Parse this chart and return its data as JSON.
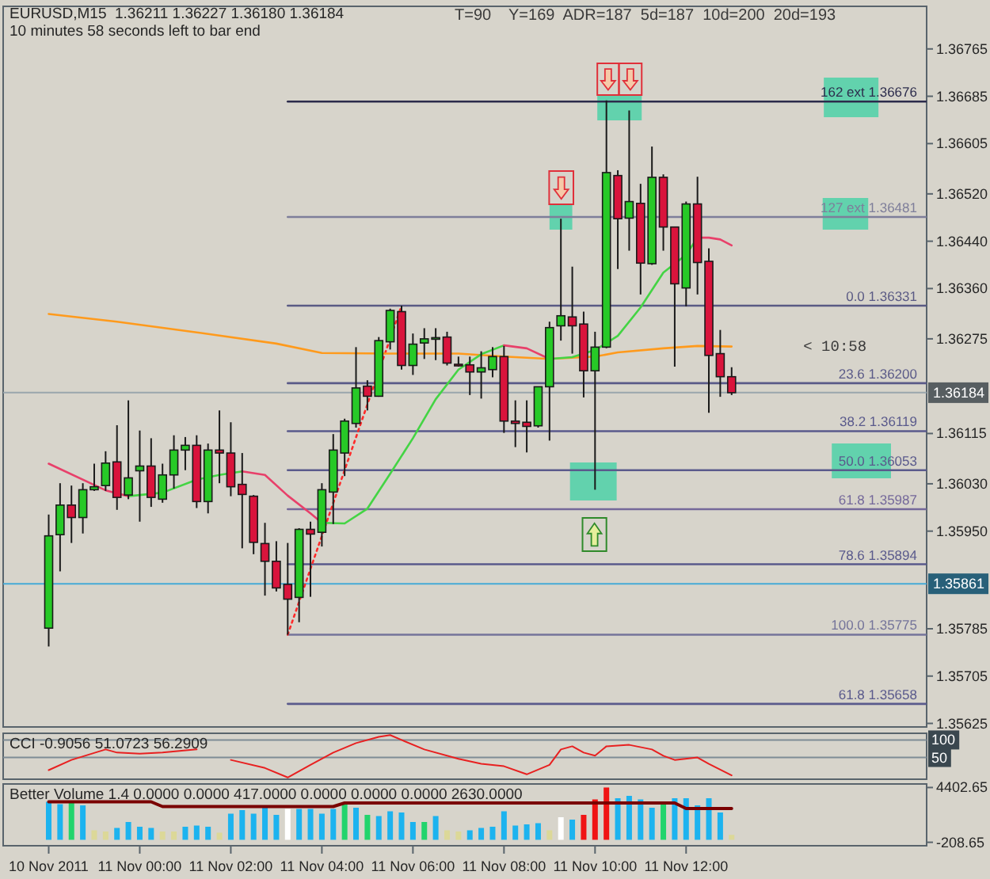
{
  "chart_data": [
    {
      "type": "candlestick",
      "title": "EURUSD,M15  1.36211 1.36227 1.36180 1.36184",
      "subtitle": "10 minutes 58 seconds left to bar end",
      "annotations": [
        "T=90    Y=169  ADR=187  5d=187  10d=200  20d=193",
        "< 10:58"
      ],
      "x": [
        "2011-11-10T22:00",
        "2011-11-10T22:15",
        "2011-11-10T22:30",
        "2011-11-10T22:45",
        "2011-11-10T23:00",
        "2011-11-10T23:15",
        "2011-11-10T23:30",
        "2011-11-10T23:45",
        "2011-11-11T00:00",
        "2011-11-11T00:15",
        "2011-11-11T00:30",
        "2011-11-11T00:45",
        "2011-11-11T01:00",
        "2011-11-11T01:15",
        "2011-11-11T01:30",
        "2011-11-11T01:45",
        "2011-11-11T02:00",
        "2011-11-11T02:15",
        "2011-11-11T02:30",
        "2011-11-11T02:45",
        "2011-11-11T03:00",
        "2011-11-11T03:15",
        "2011-11-11T03:30",
        "2011-11-11T03:45",
        "2011-11-11T04:00",
        "2011-11-11T04:15",
        "2011-11-11T04:30",
        "2011-11-11T04:45",
        "2011-11-11T05:00",
        "2011-11-11T05:15",
        "2011-11-11T05:30",
        "2011-11-11T05:45",
        "2011-11-11T06:00",
        "2011-11-11T06:15",
        "2011-11-11T06:30",
        "2011-11-11T06:45",
        "2011-11-11T07:00",
        "2011-11-11T07:15",
        "2011-11-11T07:30",
        "2011-11-11T07:45",
        "2011-11-11T08:00",
        "2011-11-11T08:15",
        "2011-11-11T08:30",
        "2011-11-11T08:45",
        "2011-11-11T09:00",
        "2011-11-11T09:15",
        "2011-11-11T09:30",
        "2011-11-11T09:45",
        "2011-11-11T10:00",
        "2011-11-11T10:15",
        "2011-11-11T10:30",
        "2011-11-11T10:45",
        "2011-11-11T11:00",
        "2011-11-11T11:15",
        "2011-11-11T11:30",
        "2011-11-11T11:45",
        "2011-11-11T12:00",
        "2011-11-11T12:15",
        "2011-11-11T12:30",
        "2011-11-11T12:45",
        "2011-11-11T13:00"
      ],
      "ohlc": [
        [
          1.35786,
          1.35978,
          1.35755,
          1.35942
        ],
        [
          1.35944,
          1.36031,
          1.35882,
          1.35994
        ],
        [
          1.35994,
          1.36027,
          1.3593,
          1.35973
        ],
        [
          1.35973,
          1.36031,
          1.35946,
          1.3602
        ],
        [
          1.3602,
          1.36064,
          1.36018,
          1.36025
        ],
        [
          1.36027,
          1.36085,
          1.36018,
          1.36065
        ],
        [
          1.36067,
          1.36129,
          1.35986,
          1.36007
        ],
        [
          1.36011,
          1.36171,
          1.36004,
          1.3604
        ],
        [
          1.36052,
          1.3612,
          1.35966,
          1.3606
        ],
        [
          1.3606,
          1.36107,
          1.35991,
          1.36007
        ],
        [
          1.36004,
          1.36064,
          1.35998,
          1.36045
        ],
        [
          1.36045,
          1.36112,
          1.36022,
          1.36087
        ],
        [
          1.36087,
          1.36109,
          1.36053,
          1.36095
        ],
        [
          1.36095,
          1.36112,
          1.35989,
          1.36
        ],
        [
          1.36,
          1.36098,
          1.3598,
          1.36087
        ],
        [
          1.36087,
          1.36154,
          1.36031,
          1.36082
        ],
        [
          1.36082,
          1.36134,
          1.36009,
          1.36025
        ],
        [
          1.36029,
          1.36082,
          1.35921,
          1.36012
        ],
        [
          1.36009,
          1.36011,
          1.35911,
          1.35931
        ],
        [
          1.35929,
          1.35964,
          1.35841,
          1.35899
        ],
        [
          1.35899,
          1.35933,
          1.35848,
          1.35854
        ],
        [
          1.3586,
          1.3593,
          1.35775,
          1.35835
        ],
        [
          1.35838,
          1.35955,
          1.35796,
          1.35953
        ],
        [
          1.35953,
          1.35966,
          1.35839,
          1.35945
        ],
        [
          1.35948,
          1.36031,
          1.35924,
          1.3602
        ],
        [
          1.36016,
          1.36114,
          1.35962,
          1.36087
        ],
        [
          1.36082,
          1.3614,
          1.36043,
          1.36136
        ],
        [
          1.36132,
          1.36261,
          1.36125,
          1.36192
        ],
        [
          1.36195,
          1.36205,
          1.36154,
          1.36178
        ],
        [
          1.36178,
          1.36278,
          1.36177,
          1.36272
        ],
        [
          1.3627,
          1.36326,
          1.36257,
          1.36323
        ],
        [
          1.36321,
          1.36331,
          1.36223,
          1.3623
        ],
        [
          1.3623,
          1.36284,
          1.36214,
          1.36266
        ],
        [
          1.36268,
          1.36293,
          1.36241,
          1.36275
        ],
        [
          1.36275,
          1.36293,
          1.36239,
          1.36277
        ],
        [
          1.36278,
          1.36287,
          1.3623,
          1.36234
        ],
        [
          1.36232,
          1.36245,
          1.36228,
          1.36231
        ],
        [
          1.36231,
          1.36245,
          1.3618,
          1.36219
        ],
        [
          1.36219,
          1.36254,
          1.36174,
          1.36226
        ],
        [
          1.36223,
          1.36261,
          1.3621,
          1.36245
        ],
        [
          1.36245,
          1.36263,
          1.36116,
          1.36136
        ],
        [
          1.36136,
          1.36171,
          1.36092,
          1.36132
        ],
        [
          1.36134,
          1.36171,
          1.36083,
          1.36127
        ],
        [
          1.36128,
          1.36194,
          1.36125,
          1.36194
        ],
        [
          1.36194,
          1.36304,
          1.36103,
          1.36294
        ],
        [
          1.36297,
          1.36478,
          1.36272,
          1.36314
        ],
        [
          1.36312,
          1.36397,
          1.3625,
          1.36297
        ],
        [
          1.363,
          1.36321,
          1.36176,
          1.36221
        ],
        [
          1.36221,
          1.36287,
          1.3602,
          1.36261
        ],
        [
          1.36261,
          1.36678,
          1.36259,
          1.36556
        ],
        [
          1.36551,
          1.3656,
          1.36393,
          1.36478
        ],
        [
          1.36479,
          1.36661,
          1.36424,
          1.36507
        ],
        [
          1.36504,
          1.36537,
          1.3635,
          1.36403
        ],
        [
          1.36402,
          1.366,
          1.364,
          1.36548
        ],
        [
          1.36548,
          1.36553,
          1.36424,
          1.36464
        ],
        [
          1.36464,
          1.36464,
          1.36228,
          1.36368
        ],
        [
          1.36361,
          1.36507,
          1.3633,
          1.36503
        ],
        [
          1.36503,
          1.36549,
          1.3635,
          1.36404
        ],
        [
          1.36406,
          1.36428,
          1.3615,
          1.36247
        ],
        [
          1.3625,
          1.3629,
          1.36177,
          1.36211
        ],
        [
          1.36211,
          1.36227,
          1.3618,
          1.36184
        ]
      ],
      "colors": [
        "#27c927",
        "#27c927",
        "#d9143c",
        "#27c927",
        "#27c927",
        "#27c927",
        "#d9143c",
        "#27c927",
        "#27c927",
        "#d9143c",
        "#27c927",
        "#27c927",
        "#27c927",
        "#d9143c",
        "#27c927",
        "#d9143c",
        "#d9143c",
        "#d9143c",
        "#d9143c",
        "#d9143c",
        "#d9143c",
        "#d9143c",
        "#27c927",
        "#d9143c",
        "#27c927",
        "#27c927",
        "#27c927",
        "#27c927",
        "#d9143c",
        "#27c927",
        "#27c927",
        "#d9143c",
        "#27c927",
        "#27c927",
        "#27c927",
        "#d9143c",
        "#d9143c",
        "#d9143c",
        "#27c927",
        "#27c927",
        "#d9143c",
        "#d9143c",
        "#d9143c",
        "#27c927",
        "#27c927",
        "#27c927",
        "#d9143c",
        "#d9143c",
        "#27c927",
        "#27c927",
        "#d9143c",
        "#27c927",
        "#d9143c",
        "#27c927",
        "#d9143c",
        "#d9143c",
        "#27c927",
        "#d9143c",
        "#d9143c",
        "#d9143c",
        "#d9143c"
      ],
      "xlim": [
        "2011-11-10T21:00",
        "2011-11-11T17:17"
      ],
      "ylim": [
        1.35619,
        1.36837
      ],
      "yticks": [
        1.36765,
        1.36685,
        1.36605,
        {
          "value": 1.3652,
          "label": "1.36520"
        },
        {
          "value": 1.3644,
          "label": "1.36440"
        },
        {
          "value": 1.3636,
          "label": "1.36360"
        },
        1.36275,
        1.36115,
        {
          "value": 1.3603,
          "label": "1.36030"
        },
        {
          "value": 1.3595,
          "label": "1.35950"
        },
        1.35785,
        1.35705,
        1.35625
      ],
      "tick_labels": "y",
      "legend": "right",
      "ref_lines": [
        {
          "axis": "y",
          "value": 1.36184,
          "label": "1.36184",
          "color": "#9aa6ac"
        },
        {
          "axis": "y",
          "value": 1.35861,
          "label": "1.35861",
          "color": "#46aad6"
        }
      ],
      "series": [
        {
          "type": "line",
          "name": "162 ext 1.36676",
          "color": "#2c2c4c",
          "x": [
            "2011-11-11T03:15",
            "2011-11-11T17:17"
          ],
          "values": [
            1.36676,
            1.36676
          ]
        },
        {
          "type": "line",
          "name": "127 ext 1.36481",
          "color": "#7e7e9a",
          "x": [
            "2011-11-11T03:15",
            "2011-11-11T17:17"
          ],
          "values": [
            1.36481,
            1.36481
          ]
        },
        {
          "type": "line",
          "name": "0.0 1.36331",
          "color": "#5a5a84",
          "x": [
            "2011-11-11T03:15",
            "2011-11-11T17:17"
          ],
          "values": [
            1.36331,
            1.36331
          ]
        },
        {
          "type": "line",
          "name": "23.6 1.36200",
          "color": "#5a5a88",
          "x": [
            "2011-11-11T03:15",
            "2011-11-11T17:17"
          ],
          "values": [
            1.362,
            1.362
          ]
        },
        {
          "type": "line",
          "name": "38.2 1.36119",
          "color": "#5a5a8c",
          "x": [
            "2011-11-11T03:15",
            "2011-11-11T17:17"
          ],
          "values": [
            1.36119,
            1.36119
          ]
        },
        {
          "type": "line",
          "name": "50.0 1.36053",
          "color": "#5a5a8c",
          "x": [
            "2011-11-11T03:15",
            "2011-11-11T17:17"
          ],
          "values": [
            1.36053,
            1.36053
          ]
        },
        {
          "type": "line",
          "name": "61.8 1.35987",
          "color": "#74689a",
          "x": [
            "2011-11-11T03:15",
            "2011-11-11T17:17"
          ],
          "values": [
            1.35987,
            1.35987
          ]
        },
        {
          "type": "line",
          "name": "78.6 1.35894",
          "color": "#5a5a8c",
          "x": [
            "2011-11-11T03:15",
            "2011-11-11T17:17"
          ],
          "values": [
            1.35894,
            1.35894
          ]
        },
        {
          "type": "line",
          "name": "100.0 1.35775",
          "color": "#74749a",
          "x": [
            "2011-11-11T03:15",
            "2011-11-11T17:17"
          ],
          "values": [
            1.35775,
            1.35775
          ]
        },
        {
          "type": "line",
          "name": "61.8 1.35658",
          "color": "#5a5a8c",
          "x": [
            "2011-11-11T03:15",
            "2011-11-11T17:17"
          ],
          "values": [
            1.35658,
            1.35658
          ]
        },
        {
          "type": "line",
          "color": "#ff2a2a",
          "line_style": "dotted",
          "x": [
            "2011-11-11T03:15",
            "2011-11-11T05:45"
          ],
          "values": [
            1.35775,
            1.36331
          ]
        },
        {
          "type": "line",
          "color": "#ff9a1c",
          "x": [
            "2011-11-10T22:00",
            "2011-11-10T23:30",
            "2011-11-11T01:15",
            "2011-11-11T03:00",
            "2011-11-11T04:00",
            "2011-11-11T05:30",
            "2011-11-11T07:00",
            "2011-11-11T08:00",
            "2011-11-11T09:00",
            "2011-11-11T10:00",
            "2011-11-11T10:30",
            "2011-11-11T11:30",
            "2011-11-11T12:15",
            "2011-11-11T13:00"
          ],
          "values": [
            1.36317,
            1.36304,
            1.36286,
            1.36267,
            1.36251,
            1.3625,
            1.3625,
            1.36245,
            1.36241,
            1.36245,
            1.36252,
            1.36259,
            1.36263,
            1.36262
          ]
        },
        {
          "type": "line",
          "color": "#44d444",
          "x": [
            "2011-11-10T23:45",
            "2011-11-11T00:30",
            "2011-11-11T01:15",
            "2011-11-11T01:45",
            "2011-11-11T02:15",
            "2011-11-11T03:00",
            "2011-11-11T04:00",
            "2011-11-11T04:30",
            "2011-11-11T05:00",
            "2011-11-11T05:30",
            "2011-11-11T06:00",
            "2011-11-11T06:30",
            "2011-11-11T07:00",
            "2011-11-11T07:30",
            "2011-11-11T08:00",
            "2011-11-11T08:30",
            "2011-11-11T09:00",
            "2011-11-11T09:30",
            "2011-11-11T10:00",
            "2011-11-11T10:30",
            "2011-11-11T11:00",
            "2011-11-11T11:30",
            "2011-11-11T12:00",
            "2011-11-11T12:15"
          ],
          "values": [
            1.36009,
            1.36015,
            1.36037,
            1.36045,
            1.36051,
            null,
            1.35964,
            1.35963,
            1.35988,
            1.36047,
            1.36107,
            1.36173,
            1.36223,
            1.36249,
            1.36264,
            null,
            1.36241,
            1.36244,
            1.36256,
            1.3628,
            1.36328,
            1.36387,
            1.36417,
            1.36446
          ]
        },
        {
          "type": "line",
          "color": "#e8406a",
          "x": [
            "2011-11-10T22:00",
            "2011-11-10T23:15",
            "2011-11-10T23:45",
            "2011-11-11T01:00",
            "2011-11-11T02:15",
            "2011-11-11T02:45",
            "2011-11-11T03:15",
            "2011-11-11T03:45",
            "2011-11-11T04:00",
            "2011-11-11T06:00",
            "2011-11-11T08:00",
            "2011-11-11T08:30",
            "2011-11-11T09:00",
            "2011-11-11T10:30",
            "2011-11-11T12:15",
            "2011-11-11T12:30",
            "2011-11-11T12:45",
            "2011-11-11T13:00"
          ],
          "values": [
            1.36064,
            1.36019,
            1.36009,
            null,
            1.36051,
            1.36045,
            1.3601,
            1.3598,
            1.35964,
            null,
            1.36264,
            1.36259,
            1.36241,
            null,
            1.36446,
            1.36446,
            1.36443,
            1.36433
          ]
        }
      ]
    },
    {
      "type": "line",
      "title": "CCI -0.9056 51.0723 56.2909",
      "xlim": [
        "2011-11-10T21:00",
        "2011-11-11T17:17"
      ],
      "ylim": [
        -12,
        119
      ],
      "yticks": [
        100,
        50
      ],
      "grid": "y",
      "tick_labels": "y",
      "series": [
        {
          "color": "#e82020",
          "x": [
            "2011-11-10T22:00",
            "2011-11-10T22:30",
            "2011-11-10T23:15",
            "2011-11-10T23:30",
            "2011-11-11T00:00",
            "2011-11-11T00:30",
            "2011-11-11T01:15",
            "2011-11-11T01:30",
            "2011-11-11T02:00",
            "2011-11-11T02:45",
            "2011-11-11T03:15",
            "2011-11-11T03:45",
            "2011-11-11T04:15",
            "2011-11-11T04:45",
            "2011-11-11T05:15",
            "2011-11-11T05:30",
            "2011-11-11T05:45",
            "2011-11-11T06:15",
            "2011-11-11T07:00",
            "2011-11-11T07:30",
            "2011-11-11T08:00",
            "2011-11-11T08:30",
            "2011-11-11T09:00",
            "2011-11-11T09:15",
            "2011-11-11T09:30",
            "2011-11-11T09:45",
            "2011-11-11T10:00",
            "2011-11-11T10:15",
            "2011-11-11T10:45",
            "2011-11-11T11:15",
            "2011-11-11T11:30",
            "2011-11-11T11:45",
            "2011-11-11T12:15",
            "2011-11-11T12:30",
            "2011-11-11T13:00"
          ],
          "values": [
            14,
            43,
            73,
            64,
            61,
            64,
            73,
            null,
            43,
            20,
            -7,
            29,
            64,
            91,
            109,
            114,
            100,
            73,
            46,
            32,
            25,
            2,
            29,
            73,
            82,
            64,
            55,
            82,
            86,
            73,
            55,
            43,
            50,
            32,
            -1
          ]
        }
      ]
    },
    {
      "type": "bar",
      "title": "Better Volume 1.4 0.0000 0.0000 417.0000 0.0000 0.0000 0.0000 2630.0000",
      "x": [
        "2011-11-10T22:00",
        "2011-11-10T22:15",
        "2011-11-10T22:30",
        "2011-11-10T22:45",
        "2011-11-10T23:00",
        "2011-11-10T23:15",
        "2011-11-10T23:30",
        "2011-11-10T23:45",
        "2011-11-11T00:00",
        "2011-11-11T00:15",
        "2011-11-11T00:30",
        "2011-11-11T00:45",
        "2011-11-11T01:00",
        "2011-11-11T01:15",
        "2011-11-11T01:30",
        "2011-11-11T01:45",
        "2011-11-11T02:00",
        "2011-11-11T02:15",
        "2011-11-11T02:30",
        "2011-11-11T02:45",
        "2011-11-11T03:00",
        "2011-11-11T03:15",
        "2011-11-11T03:30",
        "2011-11-11T03:45",
        "2011-11-11T04:00",
        "2011-11-11T04:15",
        "2011-11-11T04:30",
        "2011-11-11T04:45",
        "2011-11-11T05:00",
        "2011-11-11T05:15",
        "2011-11-11T05:30",
        "2011-11-11T05:45",
        "2011-11-11T06:00",
        "2011-11-11T06:15",
        "2011-11-11T06:30",
        "2011-11-11T06:45",
        "2011-11-11T07:00",
        "2011-11-11T07:15",
        "2011-11-11T07:30",
        "2011-11-11T07:45",
        "2011-11-11T08:00",
        "2011-11-11T08:15",
        "2011-11-11T08:30",
        "2011-11-11T08:45",
        "2011-11-11T09:00",
        "2011-11-11T09:15",
        "2011-11-11T09:30",
        "2011-11-11T09:45",
        "2011-11-11T10:00",
        "2011-11-11T10:15",
        "2011-11-11T10:30",
        "2011-11-11T10:45",
        "2011-11-11T11:00",
        "2011-11-11T11:15",
        "2011-11-11T11:30",
        "2011-11-11T11:45",
        "2011-11-11T12:00",
        "2011-11-11T12:15",
        "2011-11-11T12:30",
        "2011-11-11T12:45",
        "2011-11-11T13:00"
      ],
      "xlim": [
        "2011-11-10T21:00",
        "2011-11-11T17:17"
      ],
      "ylim": [
        -500,
        4700
      ],
      "yticks": [
        4402.65,
        -208.65
      ],
      "xticks": [
        {
          "value": "2011-11-10T22:00",
          "label": "10 Nov 2011"
        },
        {
          "value": "2011-11-11T00:00",
          "label": "11 Nov 00:00"
        },
        {
          "value": "2011-11-11T02:00",
          "label": "11 Nov 02:00"
        },
        {
          "value": "2011-11-11T04:00",
          "label": "11 Nov 04:00"
        },
        {
          "value": "2011-11-11T06:00",
          "label": "11 Nov 06:00"
        },
        {
          "value": "2011-11-11T08:00",
          "label": "11 Nov 08:00"
        },
        {
          "value": "2011-11-11T10:00",
          "label": "11 Nov 10:00"
        },
        {
          "value": "2011-11-11T12:00",
          "label": "11 Nov 12:00"
        }
      ],
      "series": [
        {
          "type": "bar",
          "values": [
            3200,
            3000,
            3200,
            2900,
            800,
            700,
            1000,
            1500,
            1100,
            1000,
            700,
            700,
            1100,
            1200,
            1100,
            600,
            2200,
            2500,
            2200,
            2700,
            2100,
            2600,
            2600,
            2600,
            2200,
            2600,
            3000,
            2700,
            2100,
            2000,
            2400,
            2300,
            1500,
            1500,
            2000,
            800,
            700,
            800,
            1000,
            1100,
            2400,
            1200,
            1300,
            1400,
            800,
            1900,
            1700,
            2100,
            3400,
            4402.65,
            3500,
            3700,
            3400,
            2700,
            3100,
            3500,
            3500,
            2900,
            3500,
            2300,
            417
          ],
          "colors": [
            "#1cb3ef",
            "#1cb3ef",
            "#22d46c",
            "#1cb3ef",
            "#dcd898",
            "#dcd898",
            "#1cb3ef",
            "#1cb3ef",
            "#1cb3ef",
            "#1cb3ef",
            "#dcd898",
            "#dcd898",
            "#1cb3ef",
            "#1cb3ef",
            "#1cb3ef",
            "#dcd898",
            "#1cb3ef",
            "#1cb3ef",
            "#1cb3ef",
            "#1cb3ef",
            "#1cb3ef",
            "#ffffff",
            "#1cb3ef",
            "#1cb3ef",
            "#1cb3ef",
            "#1cb3ef",
            "#22d46c",
            "#1cb3ef",
            "#22d46c",
            "#1cb3ef",
            "#1cb3ef",
            "#1cb3ef",
            "#1cb3ef",
            "#22d46c",
            "#1cb3ef",
            "#dcd898",
            "#dcd898",
            "#1cb3ef",
            "#1cb3ef",
            "#1cb3ef",
            "#1cb3ef",
            "#1cb3ef",
            "#1cb3ef",
            "#1cb3ef",
            "#dcd898",
            "#ffffff",
            "#1cb3ef",
            "#f01414",
            "#f01414",
            "#f01414",
            "#1cb3ef",
            "#1cb3ef",
            "#1cb3ef",
            "#1cb3ef",
            "#22d46c",
            "#1cb3ef",
            "#1cb3ef",
            "#1cb3ef",
            "#1cb3ef",
            "#1cb3ef",
            "#dcd898"
          ]
        },
        {
          "type": "line",
          "color": "#7a0000",
          "x": [
            "2011-11-10T22:00",
            "2011-11-11T00:15",
            "2011-11-11T00:30",
            "2011-11-11T04:15",
            "2011-11-11T04:30",
            "2011-11-11T11:45",
            "2011-11-11T12:00",
            "2011-11-11T13:00"
          ],
          "values": [
            3200,
            3200,
            2800,
            2800,
            3100,
            3100,
            2630,
            2630
          ]
        }
      ]
    }
  ]
}
